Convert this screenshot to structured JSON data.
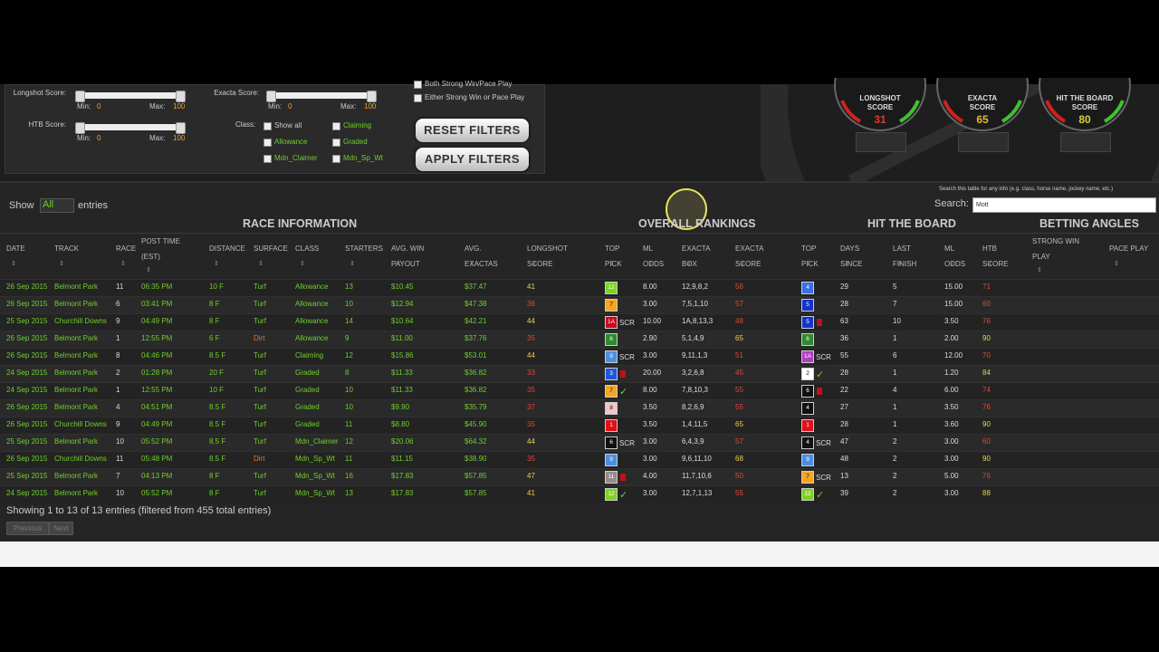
{
  "filters": {
    "longshot": {
      "label": "Longshot Score:",
      "min_label": "Min:",
      "min": "0",
      "max_label": "Max:",
      "max": "100"
    },
    "htb": {
      "label": "HTB Score:",
      "min_label": "Min:",
      "min": "0",
      "max_label": "Max:",
      "max": "100"
    },
    "exacta": {
      "label": "Exacta Score:",
      "min_label": "Min:",
      "min": "0",
      "max_label": "Max:",
      "max": "100"
    },
    "class_label": "Class:",
    "classes": [
      "Show all",
      "Claiming",
      "Allowance",
      "Graded",
      "Mdn_Claimer",
      "Mdn_Sp_Wt"
    ],
    "options": [
      "Both Strong Win/Pace Play",
      "Either Strong Win or Pace Play"
    ],
    "buttons": [
      "RESET FILTERS",
      "APPLY FILTERS"
    ]
  },
  "gauges": [
    {
      "title": [
        "LONGSHOT",
        "SCORE"
      ],
      "value": "31",
      "color": "#e03a2a"
    },
    {
      "title": [
        "EXACTA",
        "SCORE"
      ],
      "value": "65",
      "color": "#e8b830"
    },
    {
      "title": [
        "HIT THE BOARD",
        "SCORE"
      ],
      "value": "80",
      "color": "#d8d040"
    }
  ],
  "table": {
    "show_label": "Show",
    "show_value": "All",
    "entries_label": "entries",
    "search_hint": "Search this table for any info (e.g. class, horse name, jockey name, etc.)",
    "search_label": "Search:",
    "search_value": "Mott",
    "groups": [
      "RACE INFORMATION",
      "OVERALL RANKINGS",
      "HIT THE BOARD",
      "BETTING ANGLES"
    ],
    "columns": [
      [
        "DATE"
      ],
      [
        "TRACK"
      ],
      [
        "RACE"
      ],
      [
        "POST TIME",
        "(EST)"
      ],
      [
        "DISTANCE"
      ],
      [
        "SURFACE"
      ],
      [
        "CLASS"
      ],
      [
        "STARTERS"
      ],
      [
        "AVG. WIN",
        "PAYOUT"
      ],
      [
        "AVG.",
        "EXACTAS"
      ],
      [
        "LONGSHOT",
        "SCORE"
      ],
      [
        "TOP",
        "PICK"
      ],
      [
        "ML",
        "ODDS"
      ],
      [
        "EXACTA",
        "BOX"
      ],
      [
        "EXACTA",
        "SCORE"
      ],
      [
        "TOP",
        "PICK"
      ],
      [
        "DAYS",
        "SINCE"
      ],
      [
        "LAST",
        "FINISH"
      ],
      [
        "ML",
        "ODDS"
      ],
      [
        "HTB",
        "SCORE"
      ],
      [
        "STRONG WIN",
        "PLAY"
      ],
      [
        "PACE PLAY"
      ]
    ],
    "rows": [
      [
        "26 Sep 2015",
        "Belmont Park",
        "11",
        "06:35 PM",
        "10 F",
        "Turf",
        "Allowance",
        "13",
        "$10.45",
        "$37.47",
        {
          "text": "41",
          "color": "#e8d44d"
        },
        {
          "text": "12",
          "color": "#7ed321"
        },
        "8.00",
        "12,9,8,2",
        {
          "text": "56",
          "color": "#e0473a"
        },
        {
          "text": "4",
          "color": "#3a6ee8"
        },
        "29",
        "5",
        "15.00",
        {
          "text": "71",
          "color": "#e0473a"
        }
      ],
      [
        "26 Sep 2015",
        "Belmont Park",
        "6",
        "03:41 PM",
        "8 F",
        "Turf",
        "Allowance",
        "10",
        "$12.94",
        "$47.38",
        {
          "text": "36",
          "color": "#e0473a"
        },
        {
          "text": "7",
          "color": "#f5a623"
        },
        "3.00",
        "7,5,1,10",
        {
          "text": "57",
          "color": "#e0473a"
        },
        {
          "text": "5",
          "color": "#1533cc"
        },
        "28",
        "7",
        "15.00",
        {
          "text": "60",
          "color": "#e0473a"
        }
      ],
      [
        "25 Sep 2015",
        "Churchill Downs",
        "9",
        "04:49 PM",
        "8 F",
        "Turf",
        "Allowance",
        "14",
        "$10.64",
        "$42.21",
        {
          "text": "44",
          "color": "#e8d44d"
        },
        {
          "text": "1A",
          "color": "#d0021b",
          "note": "SCR"
        },
        "10.00",
        "1A,8,13,3",
        {
          "text": "48",
          "color": "#e0473a"
        },
        {
          "text": "5",
          "color": "#1533cc",
          "flag": "#c0101a"
        },
        "63",
        "10",
        "3.50",
        {
          "text": "76",
          "color": "#e0473a"
        }
      ],
      [
        "26 Sep 2015",
        "Belmont Park",
        "1",
        "12:55 PM",
        "6 F",
        {
          "text": "Dirt",
          "color": "#e0782a"
        },
        "Allowance",
        "9",
        "$11.00",
        "$37.76",
        {
          "text": "35",
          "color": "#e0473a"
        },
        {
          "text": "6",
          "color": "#2e8b2e"
        },
        "2.90",
        "5,1,4,9",
        {
          "text": "65",
          "color": "#e8d44d"
        },
        {
          "text": "6",
          "color": "#2e8b2e"
        },
        "36",
        "1",
        "2.00",
        {
          "text": "90",
          "color": "#e8d44d"
        }
      ],
      [
        "26 Sep 2015",
        "Belmont Park",
        "8",
        "04:46 PM",
        "8.5 F",
        "Turf",
        "Claiming",
        "12",
        "$15.86",
        "$53.01",
        {
          "text": "44",
          "color": "#e8d44d"
        },
        {
          "text": "9",
          "color": "#4a90e2",
          "note": "SCR"
        },
        "3.00",
        "9,11,1,3",
        {
          "text": "51",
          "color": "#e0473a"
        },
        {
          "text": "1A",
          "color": "#b040c0",
          "note": "SCR"
        },
        "55",
        "6",
        "12.00",
        {
          "text": "70",
          "color": "#e0473a"
        }
      ],
      [
        "24 Sep 2015",
        "Belmont Park",
        "2",
        "01:28 PM",
        "20 F",
        "Turf",
        "Graded",
        "8",
        "$11.33",
        "$36.82",
        {
          "text": "33",
          "color": "#e0473a"
        },
        {
          "text": "3",
          "color": "#2255dd",
          "flag": "#c0101a"
        },
        "20.00",
        "3,2,6,8",
        {
          "text": "45",
          "color": "#e0473a"
        },
        {
          "text": "2",
          "color": "#ffffff",
          "note": "✓"
        },
        "28",
        "1",
        "1.20",
        {
          "text": "84",
          "color": "#e8d44d"
        }
      ],
      [
        "24 Sep 2015",
        "Belmont Park",
        "1",
        "12:55 PM",
        "10 F",
        "Turf",
        "Graded",
        "10",
        "$11.33",
        "$36.82",
        {
          "text": "35",
          "color": "#e0473a"
        },
        {
          "text": "7",
          "color": "#f5a623",
          "note": "✓"
        },
        "8.00",
        "7,8,10,3",
        {
          "text": "55",
          "color": "#e0473a"
        },
        {
          "text": "6",
          "color": "#111111",
          "flag": "#c0101a"
        },
        "22",
        "4",
        "6.00",
        {
          "text": "74",
          "color": "#e0473a"
        }
      ],
      [
        "26 Sep 2015",
        "Belmont Park",
        "4",
        "04:51 PM",
        "8.5 F",
        "Turf",
        "Graded",
        "10",
        "$9.90",
        "$35.79",
        {
          "text": "37",
          "color": "#e0473a"
        },
        {
          "text": "8",
          "color": "#f3c6c6"
        },
        "3.50",
        "8,2,6,9",
        {
          "text": "55",
          "color": "#e0473a"
        },
        {
          "text": "4",
          "color": "#111111"
        },
        "27",
        "1",
        "3.50",
        {
          "text": "76",
          "color": "#e0473a"
        }
      ],
      [
        "26 Sep 2015",
        "Churchill Downs",
        "9",
        "04:49 PM",
        "8.5 F",
        "Turf",
        "Graded",
        "11",
        "$8.80",
        "$45.90",
        {
          "text": "35",
          "color": "#e0473a"
        },
        {
          "text": "1",
          "color": "#e0101a"
        },
        "3.50",
        "1,4,11,5",
        {
          "text": "65",
          "color": "#e8d44d"
        },
        {
          "text": "1",
          "color": "#e0101a"
        },
        "28",
        "1",
        "3.60",
        {
          "text": "90",
          "color": "#e8d44d"
        }
      ],
      [
        "25 Sep 2015",
        "Belmont Park",
        "10",
        "05:52 PM",
        "8.5 F",
        "Turf",
        "Mdn_Claimer",
        "12",
        "$20.06",
        "$64.32",
        {
          "text": "44",
          "color": "#e8d44d"
        },
        {
          "text": "6",
          "color": "#111111",
          "note": "SCR"
        },
        "3.00",
        "6,4,3,9",
        {
          "text": "57",
          "color": "#e0473a"
        },
        {
          "text": "4",
          "color": "#111111",
          "note": "SCR"
        },
        "47",
        "2",
        "3.00",
        {
          "text": "60",
          "color": "#e0473a"
        }
      ],
      [
        "26 Sep 2015",
        "Churchill Downs",
        "11",
        "05:48 PM",
        "8.5 F",
        {
          "text": "Dirt",
          "color": "#e0782a"
        },
        "Mdn_Sp_Wt",
        "11",
        "$11.15",
        "$38.90",
        {
          "text": "35",
          "color": "#e0473a"
        },
        {
          "text": "9",
          "color": "#4a90e2"
        },
        "3.00",
        "9,6,11,10",
        {
          "text": "68",
          "color": "#e8d44d"
        },
        {
          "text": "9",
          "color": "#4a90e2"
        },
        "48",
        "2",
        "3.00",
        {
          "text": "90",
          "color": "#e8d44d"
        }
      ],
      [
        "25 Sep 2015",
        "Belmont Park",
        "7",
        "04:13 PM",
        "8 F",
        "Turf",
        "Mdn_Sp_Wt",
        "16",
        "$17.83",
        "$57.85",
        {
          "text": "47",
          "color": "#e8d44d"
        },
        {
          "text": "11",
          "color": "#9a8a8a",
          "flag": "#c0101a"
        },
        "4.00",
        "11,7,10,6",
        {
          "text": "50",
          "color": "#e0473a"
        },
        {
          "text": "7",
          "color": "#f5a623",
          "note": "SCR"
        },
        "13",
        "2",
        "5.00",
        {
          "text": "76",
          "color": "#e0473a"
        }
      ],
      [
        "24 Sep 2015",
        "Belmont Park",
        "10",
        "05:52 PM",
        "8 F",
        "Turf",
        "Mdn_Sp_Wt",
        "13",
        "$17.83",
        "$57.85",
        {
          "text": "41",
          "color": "#e8d44d"
        },
        {
          "text": "12",
          "color": "#7ed321",
          "note": "✓"
        },
        "3.00",
        "12,7,1,13",
        {
          "text": "55",
          "color": "#e0473a"
        },
        {
          "text": "12",
          "color": "#7ed321",
          "note": "✓"
        },
        "39",
        "2",
        "3.00",
        {
          "text": "88",
          "color": "#e8d44d"
        }
      ]
    ],
    "info": "Showing 1 to 13 of 13 entries (filtered from 455 total entries)",
    "pager": [
      "Previous",
      "Next"
    ]
  }
}
